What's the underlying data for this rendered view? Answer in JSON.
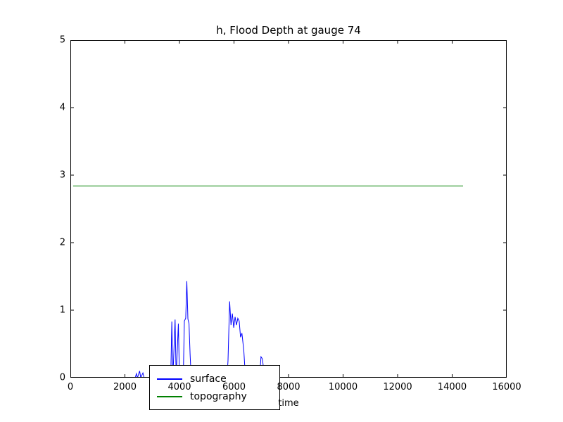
{
  "chart_data": {
    "type": "line",
    "title": "h, Flood Depth at gauge 74",
    "xlabel": "time",
    "ylabel": "",
    "xlim": [
      0,
      16000
    ],
    "ylim": [
      0,
      5
    ],
    "xticks": [
      0,
      2000,
      4000,
      6000,
      8000,
      10000,
      12000,
      14000,
      16000
    ],
    "yticks": [
      0,
      1,
      2,
      3,
      4,
      5
    ],
    "grid": false,
    "legend_position": "lower left",
    "series": [
      {
        "name": "surface",
        "color": "#0000ff",
        "points": [
          [
            0,
            0
          ],
          [
            2380,
            0
          ],
          [
            2420,
            0.06
          ],
          [
            2460,
            0
          ],
          [
            2540,
            0.1
          ],
          [
            2580,
            0
          ],
          [
            2660,
            0.07
          ],
          [
            2700,
            0
          ],
          [
            3680,
            0
          ],
          [
            3720,
            0.83
          ],
          [
            3760,
            0
          ],
          [
            3840,
            0.86
          ],
          [
            3880,
            0
          ],
          [
            3960,
            0.8
          ],
          [
            4000,
            0
          ],
          [
            4140,
            0
          ],
          [
            4180,
            0.84
          ],
          [
            4230,
            0.88
          ],
          [
            4270,
            1.43
          ],
          [
            4310,
            0.87
          ],
          [
            4350,
            0.8
          ],
          [
            4390,
            0.35
          ],
          [
            4430,
            0
          ],
          [
            5080,
            0
          ],
          [
            5120,
            0.1
          ],
          [
            5160,
            0
          ],
          [
            5740,
            0
          ],
          [
            5780,
            0.25
          ],
          [
            5840,
            1.13
          ],
          [
            5890,
            0.78
          ],
          [
            5940,
            0.95
          ],
          [
            5990,
            0.74
          ],
          [
            6040,
            0.9
          ],
          [
            6090,
            0.78
          ],
          [
            6140,
            0.88
          ],
          [
            6190,
            0.84
          ],
          [
            6240,
            0.6
          ],
          [
            6290,
            0.66
          ],
          [
            6360,
            0.4
          ],
          [
            6420,
            0
          ],
          [
            6470,
            0.06
          ],
          [
            6520,
            0
          ],
          [
            6940,
            0
          ],
          [
            6990,
            0.31
          ],
          [
            7040,
            0.28
          ],
          [
            7090,
            0.12
          ],
          [
            7150,
            0
          ],
          [
            14400,
            0
          ]
        ]
      },
      {
        "name": "topography",
        "color": "#008000",
        "points": [
          [
            100,
            2.84
          ],
          [
            14400,
            2.84
          ]
        ]
      }
    ]
  },
  "legend": {
    "items": [
      {
        "label": "surface",
        "color": "#0000ff"
      },
      {
        "label": "topography",
        "color": "#008000"
      }
    ]
  }
}
